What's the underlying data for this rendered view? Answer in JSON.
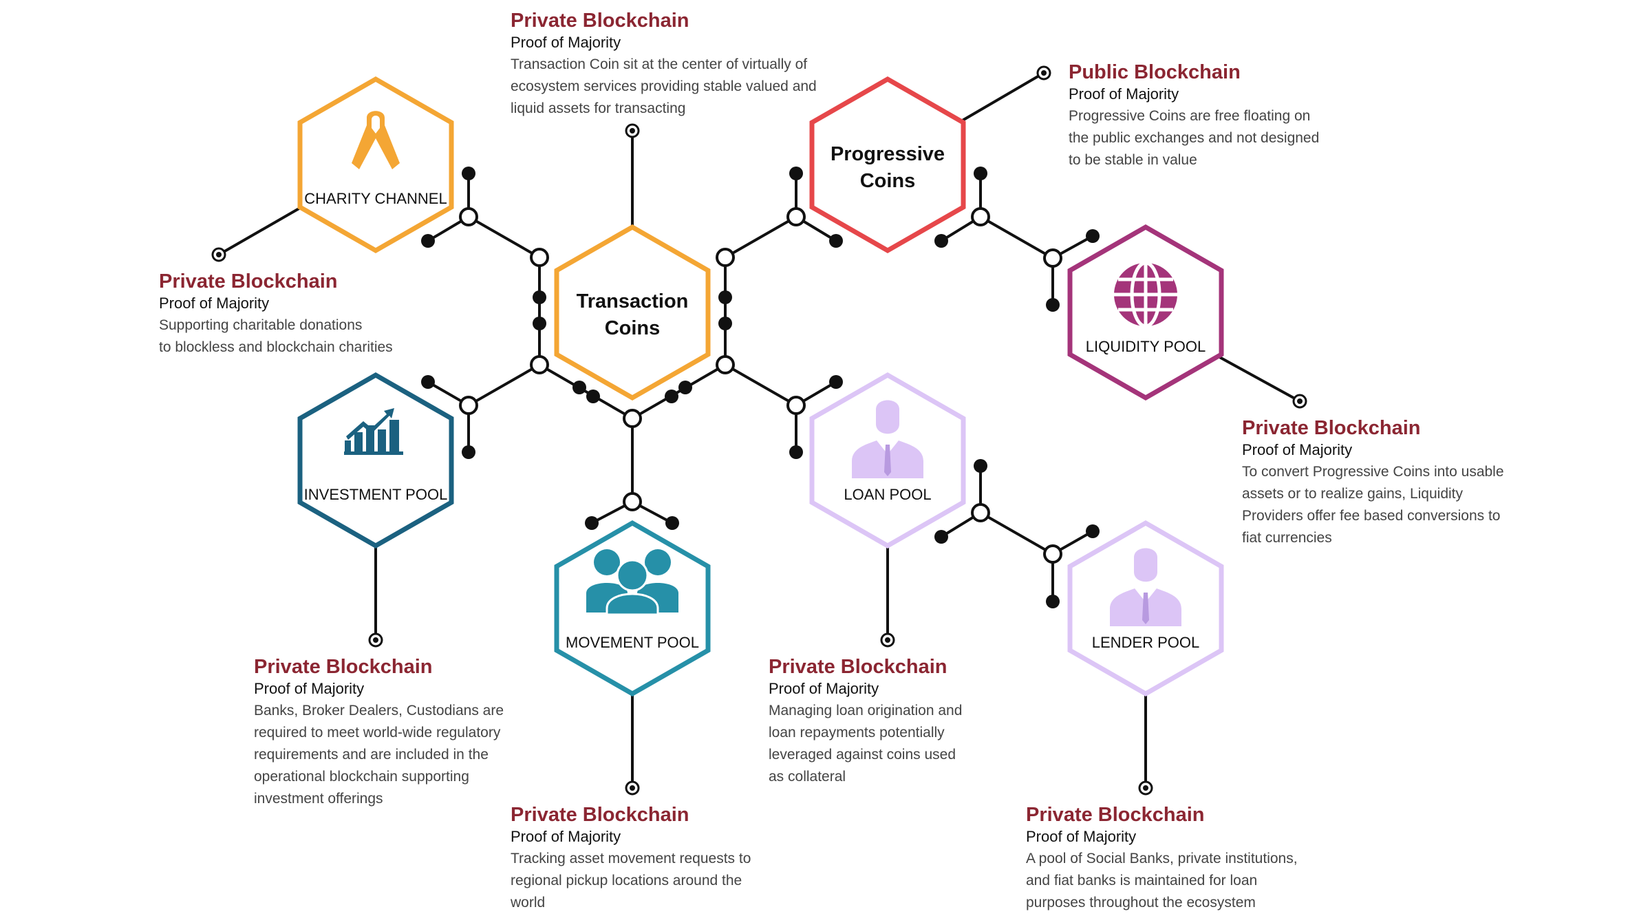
{
  "colors": {
    "title": "#8b2632",
    "orange": "#f4a634",
    "red": "#e6474a",
    "purple": "#a4347a",
    "teal_dark": "#1b6180",
    "teal": "#2690a8",
    "lavender": "#dcc5f6",
    "line": "#111111"
  },
  "hexagons": {
    "charity": {
      "label": "CHARITY CHANNEL",
      "icon": "awareness-ribbon-icon"
    },
    "transaction": {
      "line1": "Transaction",
      "line2": "Coins"
    },
    "progressive": {
      "line1": "Progressive",
      "line2": "Coins"
    },
    "liquidity": {
      "label": "LIQUIDITY POOL",
      "icon": "globe-icon"
    },
    "investment": {
      "label": "INVESTMENT POOL",
      "icon": "bar-chart-growth-icon"
    },
    "movement": {
      "label": "MOVEMENT POOL",
      "icon": "people-group-icon"
    },
    "loan": {
      "label": "LOAN POOL",
      "icon": "businessman-icon"
    },
    "lender": {
      "label": "LENDER POOL",
      "icon": "businessman-icon"
    }
  },
  "callouts": {
    "transaction": {
      "title": "Private Blockchain",
      "subtitle": "Proof of Majority",
      "lines": [
        "Transaction Coin sit at the center of virtually of",
        "ecosystem services providing stable valued and",
        "liquid assets for transacting"
      ]
    },
    "progressive": {
      "title": "Public Blockchain",
      "subtitle": "Proof of Majority",
      "lines": [
        "Progressive Coins are free floating on",
        "the public exchanges and not designed",
        "to be stable in value"
      ]
    },
    "charity": {
      "title": "Private Blockchain",
      "subtitle": "Proof of Majority",
      "lines": [
        "Supporting charitable donations",
        "to blockless and blockchain charities"
      ]
    },
    "liquidity": {
      "title": "Private Blockchain",
      "subtitle": "Proof of Majority",
      "lines": [
        "To convert Progressive Coins into usable",
        "assets or to realize gains, Liquidity",
        "Providers offer fee based conversions to",
        "fiat currencies"
      ]
    },
    "investment": {
      "title": "Private Blockchain",
      "subtitle": "Proof of Majority",
      "lines": [
        "Banks, Broker Dealers, Custodians are",
        "required to meet world-wide regulatory",
        "requirements and are included in the",
        "operational blockchain supporting",
        "investment offerings"
      ]
    },
    "loan": {
      "title": "Private Blockchain",
      "subtitle": "Proof of Majority",
      "lines": [
        "Managing loan origination and",
        "loan repayments potentially",
        "leveraged against coins used",
        "as collateral"
      ]
    },
    "movement": {
      "title": "Private Blockchain",
      "subtitle": "Proof of Majority",
      "lines": [
        "Tracking asset movement requests to",
        "regional pickup locations around the",
        "world"
      ]
    },
    "lender": {
      "title": "Private Blockchain",
      "subtitle": "Proof of Majority",
      "lines": [
        "A pool of Social Banks, private institutions,",
        "and fiat banks is maintained for loan",
        "purposes throughout the ecosystem"
      ]
    }
  }
}
